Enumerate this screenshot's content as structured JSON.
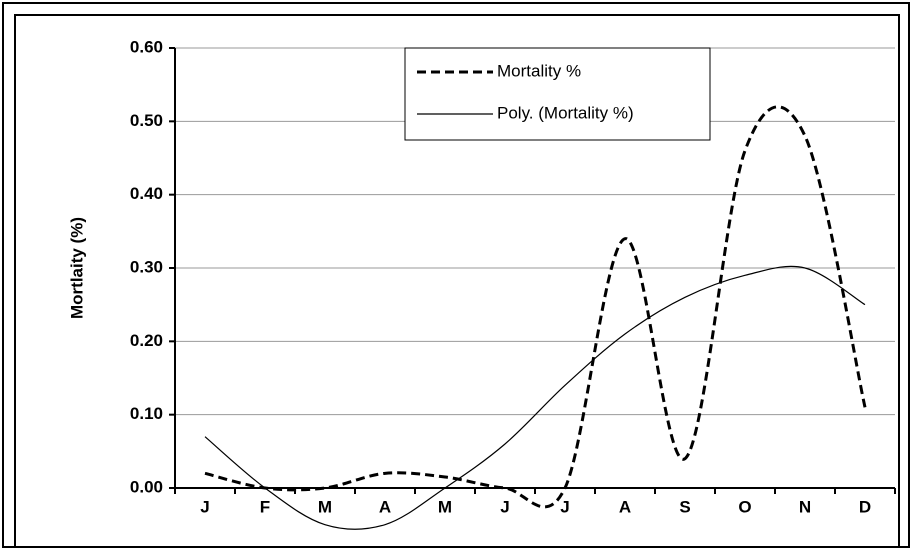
{
  "chart_data": {
    "type": "line",
    "categories": [
      "J",
      "F",
      "M",
      "A",
      "M",
      "J",
      "J",
      "A",
      "S",
      "O",
      "N",
      "D"
    ],
    "y_label": "Mortlaity (%)",
    "series": [
      {
        "name": "Mortality %",
        "color": "#000000",
        "dash": true,
        "values": [
          0.02,
          0.0,
          0.0,
          0.02,
          0.015,
          0.0,
          0.0,
          0.34,
          0.04,
          0.46,
          0.48,
          0.11
        ]
      },
      {
        "name": "Poly. (Mortality %)",
        "color": "#000000",
        "dash": false,
        "values": [
          0.07,
          0.0,
          -0.05,
          -0.05,
          0.0,
          0.06,
          0.14,
          0.21,
          0.26,
          0.29,
          0.3,
          0.25
        ]
      }
    ],
    "ylim": [
      0,
      0.6
    ],
    "yticks": [
      {
        "value": 0,
        "label": "0.00"
      },
      {
        "value": 0.1,
        "label": "0.10"
      },
      {
        "value": 0.2,
        "label": "0.20"
      },
      {
        "value": 0.3,
        "label": "0.30"
      },
      {
        "value": 0.4,
        "label": "0.40"
      },
      {
        "value": 0.5,
        "label": "0.50"
      },
      {
        "value": 0.6,
        "label": "0.60"
      }
    ],
    "grid": true,
    "legend": "top-center"
  }
}
